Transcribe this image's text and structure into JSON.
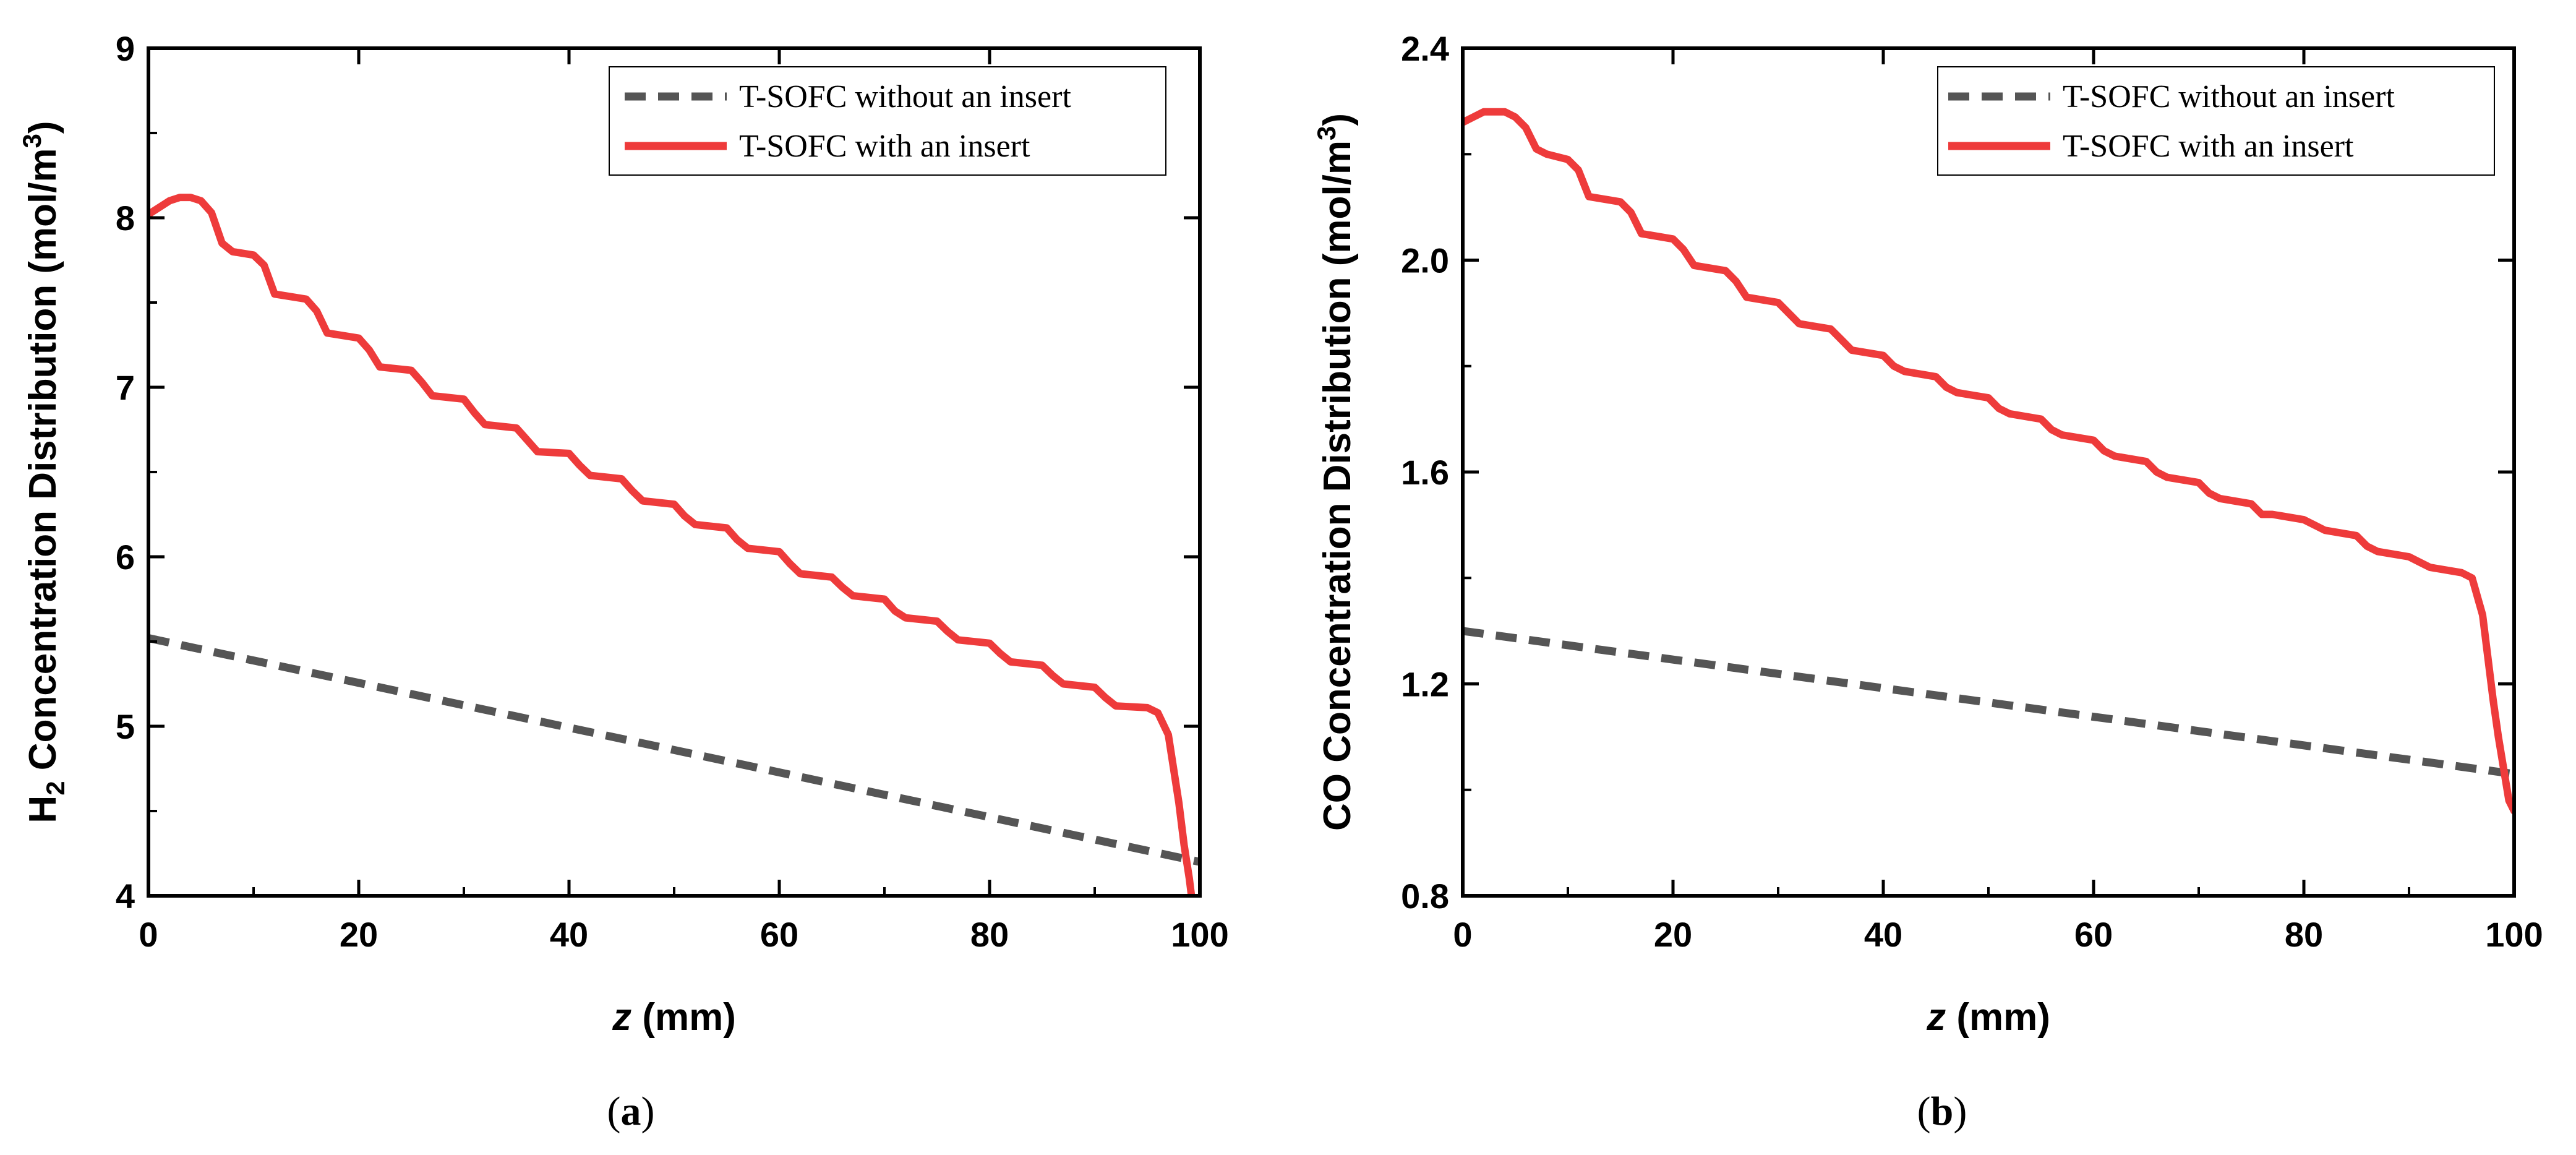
{
  "figure": {
    "colors": {
      "axis": "#000000",
      "without_insert": "#555555",
      "with_insert": "#ee3b3b"
    },
    "icons": {
      "legend_dashed": "dashed-line-icon",
      "legend_solid": "solid-line-icon"
    }
  },
  "chart_data": [
    {
      "type": "line",
      "panel": "(a)",
      "panel_letter": "a",
      "ylabel": {
        "prefix": "H",
        "subscript": "2",
        "middle": " Concentration Distribution (mol/m",
        "superscript": "3",
        "suffix": ")"
      },
      "xlabel": {
        "italic": "z",
        "rest": " (mm)"
      },
      "xlim": [
        0,
        100
      ],
      "ylim": [
        4,
        9
      ],
      "xticks": [
        0,
        20,
        40,
        60,
        80,
        100
      ],
      "xtick_labels": [
        "0",
        "20",
        "40",
        "60",
        "80",
        "100"
      ],
      "yticks": [
        4,
        5,
        6,
        7,
        8,
        9
      ],
      "ytick_labels": [
        "4",
        "5",
        "6",
        "7",
        "8",
        "9"
      ],
      "legend_position": "top-right",
      "series": [
        {
          "name": "T-SOFC without an insert",
          "style": "dashed",
          "x": [
            0,
            100
          ],
          "y": [
            5.52,
            4.2
          ]
        },
        {
          "name": "T-SOFC with an insert",
          "style": "solid",
          "x": [
            0,
            1,
            2,
            3,
            4,
            5,
            6,
            7,
            8,
            10,
            11,
            12,
            15,
            16,
            17,
            20,
            21,
            22,
            25,
            26,
            27,
            30,
            31,
            32,
            35,
            36,
            37,
            40,
            41,
            42,
            45,
            46,
            47,
            50,
            51,
            52,
            55,
            56,
            57,
            60,
            61,
            62,
            65,
            66,
            67,
            70,
            71,
            72,
            75,
            76,
            77,
            80,
            81,
            82,
            85,
            86,
            87,
            90,
            91,
            92,
            95,
            96,
            97,
            97.5,
            98,
            98.5,
            99,
            99.2
          ],
          "y": [
            8.02,
            8.06,
            8.1,
            8.12,
            8.12,
            8.1,
            8.03,
            7.85,
            7.8,
            7.78,
            7.72,
            7.55,
            7.52,
            7.45,
            7.32,
            7.29,
            7.22,
            7.12,
            7.1,
            7.03,
            6.95,
            6.93,
            6.85,
            6.78,
            6.76,
            6.69,
            6.62,
            6.61,
            6.54,
            6.48,
            6.46,
            6.39,
            6.33,
            6.31,
            6.24,
            6.19,
            6.17,
            6.1,
            6.05,
            6.03,
            5.96,
            5.9,
            5.88,
            5.82,
            5.77,
            5.75,
            5.68,
            5.64,
            5.62,
            5.56,
            5.51,
            5.49,
            5.43,
            5.38,
            5.36,
            5.3,
            5.25,
            5.23,
            5.17,
            5.12,
            5.11,
            5.08,
            4.95,
            4.75,
            4.55,
            4.3,
            4.1,
            4.0
          ]
        }
      ]
    },
    {
      "type": "line",
      "panel": "(b)",
      "panel_letter": "b",
      "ylabel": {
        "prefix": "CO",
        "subscript": "",
        "middle": " Concentration Distribution (mol/m",
        "superscript": "3",
        "suffix": ")"
      },
      "xlabel": {
        "italic": "z",
        "rest": " (mm)"
      },
      "xlim": [
        0,
        100
      ],
      "ylim": [
        0.8,
        2.4
      ],
      "xticks": [
        0,
        20,
        40,
        60,
        80,
        100
      ],
      "xtick_labels": [
        "0",
        "20",
        "40",
        "60",
        "80",
        "100"
      ],
      "yticks": [
        0.8,
        1.2,
        1.6,
        2.0,
        2.4
      ],
      "ytick_labels": [
        "0.8",
        "1.2",
        "1.6",
        "2.0",
        "2.4"
      ],
      "legend_position": "top-right",
      "series": [
        {
          "name": "T-SOFC without an insert",
          "style": "dashed",
          "x": [
            0,
            100
          ],
          "y": [
            1.3,
            1.03
          ]
        },
        {
          "name": "T-SOFC with an insert",
          "style": "solid",
          "x": [
            0,
            1,
            2,
            3,
            4,
            5,
            6,
            7,
            8,
            10,
            11,
            12,
            15,
            16,
            17,
            20,
            21,
            22,
            25,
            26,
            27,
            30,
            31,
            32,
            35,
            36,
            37,
            40,
            41,
            42,
            45,
            46,
            47,
            50,
            51,
            52,
            55,
            56,
            57,
            60,
            61,
            62,
            65,
            66,
            67,
            70,
            71,
            72,
            75,
            76,
            77,
            80,
            81,
            82,
            85,
            86,
            87,
            90,
            91,
            92,
            95,
            96,
            97,
            97.5,
            98,
            98.5,
            99,
            99.5,
            100
          ],
          "y": [
            2.26,
            2.27,
            2.28,
            2.28,
            2.28,
            2.27,
            2.25,
            2.21,
            2.2,
            2.19,
            2.17,
            2.12,
            2.11,
            2.09,
            2.05,
            2.04,
            2.02,
            1.99,
            1.98,
            1.96,
            1.93,
            1.92,
            1.9,
            1.88,
            1.87,
            1.85,
            1.83,
            1.82,
            1.8,
            1.79,
            1.78,
            1.76,
            1.75,
            1.74,
            1.72,
            1.71,
            1.7,
            1.68,
            1.67,
            1.66,
            1.64,
            1.63,
            1.62,
            1.6,
            1.59,
            1.58,
            1.56,
            1.55,
            1.54,
            1.52,
            1.52,
            1.51,
            1.5,
            1.49,
            1.48,
            1.46,
            1.45,
            1.44,
            1.43,
            1.42,
            1.41,
            1.4,
            1.33,
            1.25,
            1.17,
            1.1,
            1.04,
            0.98,
            0.96
          ]
        }
      ]
    }
  ]
}
